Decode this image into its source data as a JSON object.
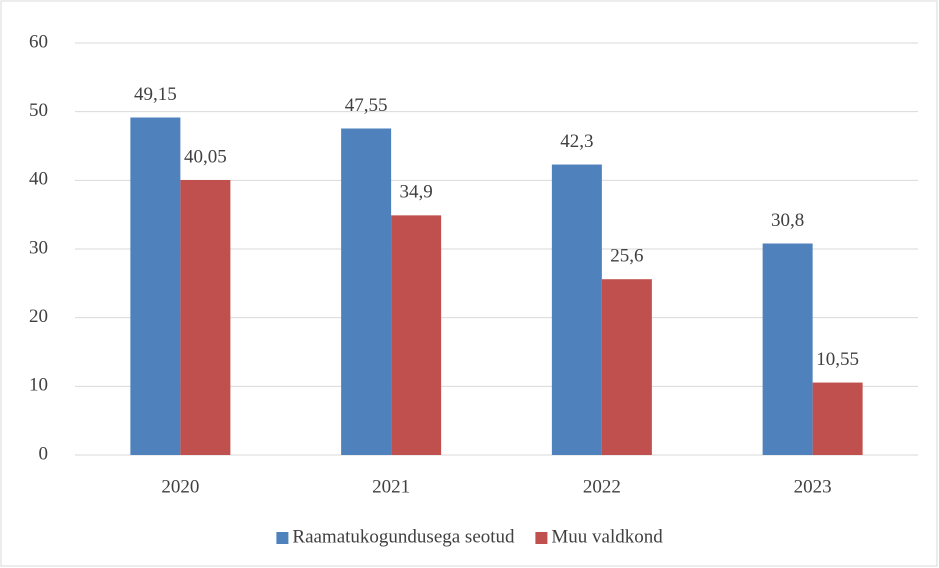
{
  "chart_data": {
    "type": "bar",
    "categories": [
      "2020",
      "2021",
      "2022",
      "2023"
    ],
    "series": [
      {
        "name": "Raamatukogundusega seotud",
        "color": "#4f81bd",
        "values": [
          49.15,
          47.55,
          42.3,
          30.8
        ],
        "value_labels": [
          "49,15",
          "47,55",
          "42,3",
          "30,8"
        ]
      },
      {
        "name": "Muu valdkond",
        "color": "#c0504d",
        "values": [
          40.05,
          34.9,
          25.6,
          10.55
        ],
        "value_labels": [
          "40,05",
          "34,9",
          "25,6",
          "10,55"
        ]
      }
    ],
    "ylim": [
      0,
      60
    ],
    "yticks": [
      0,
      10,
      20,
      30,
      40,
      50,
      60
    ],
    "grid": true,
    "legend": "bottom"
  }
}
